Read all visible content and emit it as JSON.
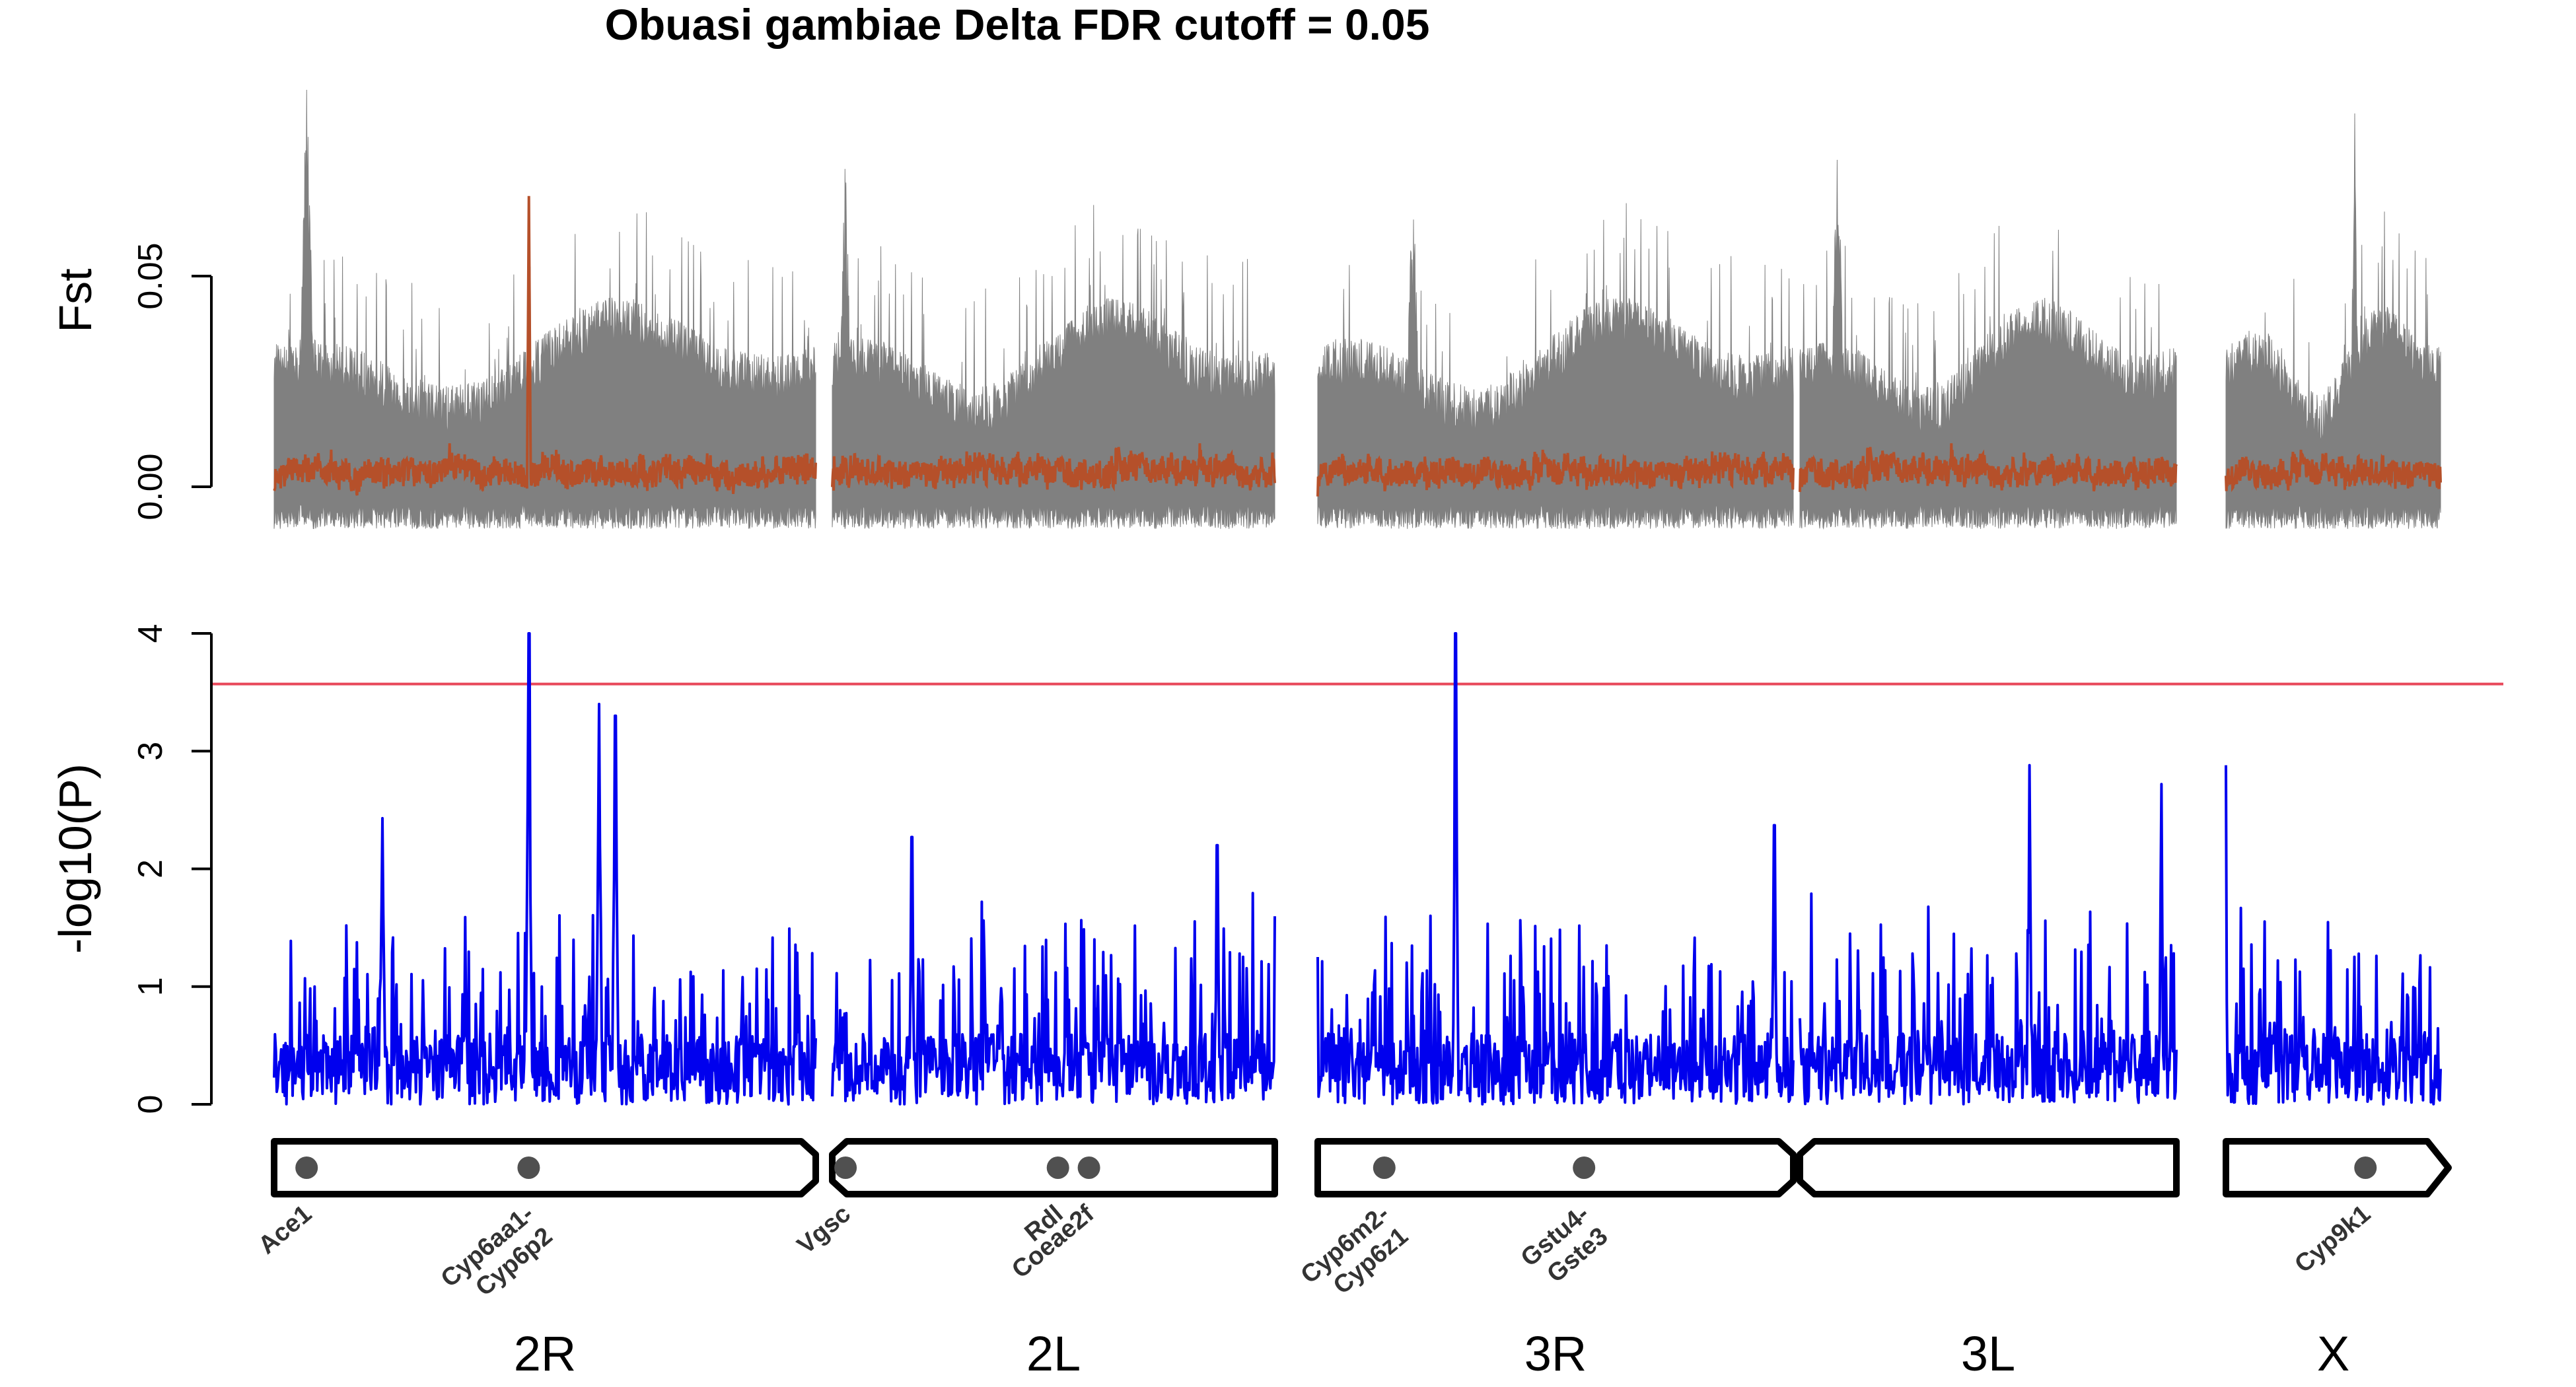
{
  "colors": {
    "fst_background": "#808080",
    "fst_smoothed": "#B5502A",
    "pvalue_line": "#0000EE",
    "fdr_cutoff": "#E8475A",
    "chromosome_outline": "#000000",
    "gene_marker": "#505050",
    "gene_label": "#333333"
  },
  "chart_data": [
    {
      "panel": "fst",
      "type": "line",
      "title": "Obuasi gambiae Delta FDR cutoff = 0.05",
      "ylabel": "Fst",
      "ylim": [
        -0.012,
        0.1
      ],
      "yticks": [
        {
          "value": 0.0,
          "label": "0.00"
        },
        {
          "value": 0.05,
          "label": "0.05"
        }
      ],
      "series": [
        {
          "key": "fst_windows",
          "color": "#808080"
        },
        {
          "key": "fst_smoothed",
          "color": "#B5502A"
        }
      ],
      "peaks": [
        {
          "chromosome": "2R",
          "x_fraction": 0.06,
          "fst": 0.097
        },
        {
          "chromosome": "2R",
          "x_fraction": 0.47,
          "fst": 0.069,
          "series": "fst_smoothed"
        },
        {
          "chromosome": "2L",
          "x_fraction": 0.03,
          "fst": 0.081
        },
        {
          "chromosome": "3R",
          "x_fraction": 0.2,
          "fst": 0.074
        },
        {
          "chromosome": "3L",
          "x_fraction": 0.1,
          "fst": 0.096
        },
        {
          "chromosome": "X",
          "x_fraction": 0.6,
          "fst": 0.097
        }
      ]
    },
    {
      "panel": "pvalue",
      "type": "line",
      "ylabel": "-log10(P)",
      "ylim": [
        0,
        4
      ],
      "yticks": [
        {
          "value": 0,
          "label": "0"
        },
        {
          "value": 1,
          "label": "1"
        },
        {
          "value": 2,
          "label": "2"
        },
        {
          "value": 3,
          "label": "3"
        },
        {
          "value": 4,
          "label": "4"
        }
      ],
      "fdr_threshold": 3.57,
      "peaks": [
        {
          "chromosome": "2R",
          "x_fraction": 0.47,
          "value": 4.0
        },
        {
          "chromosome": "2R",
          "x_fraction": 0.6,
          "value": 3.4
        },
        {
          "chromosome": "2R",
          "x_fraction": 0.63,
          "value": 3.3
        },
        {
          "chromosome": "2R",
          "x_fraction": 0.2,
          "value": 2.43
        },
        {
          "chromosome": "2L",
          "x_fraction": 0.18,
          "value": 2.27
        },
        {
          "chromosome": "2L",
          "x_fraction": 0.87,
          "value": 2.2
        },
        {
          "chromosome": "3R",
          "x_fraction": 0.29,
          "value": 4.0
        },
        {
          "chromosome": "3R",
          "x_fraction": 0.96,
          "value": 2.37
        },
        {
          "chromosome": "3L",
          "x_fraction": 0.61,
          "value": 2.88
        },
        {
          "chromosome": "3L",
          "x_fraction": 0.96,
          "value": 2.72
        },
        {
          "chromosome": "X",
          "x_fraction": 0.0,
          "value": 2.88
        }
      ]
    }
  ],
  "chromosomes": [
    {
      "name": "2R",
      "length_mb": 61.5,
      "shape": "right-notch",
      "genes": [
        {
          "label": "Ace1",
          "pos": 0.06
        },
        {
          "label": "Cyp6aa1-\nCyp6p2",
          "pos": 0.47
        }
      ]
    },
    {
      "name": "2L",
      "length_mb": 49.4,
      "shape": "left-notch",
      "genes": [
        {
          "label": "Vgsc",
          "pos": 0.03
        },
        {
          "label": "Rdl",
          "pos": 0.51
        },
        {
          "label": "Coeae2f",
          "pos": 0.58
        }
      ]
    },
    {
      "name": "3R",
      "length_mb": 53.2,
      "shape": "right-notch",
      "genes": [
        {
          "label": "Cyp6m2-\nCyp6z1",
          "pos": 0.14
        },
        {
          "label": "Gstu4-\nGste3",
          "pos": 0.56
        }
      ]
    },
    {
      "name": "3L",
      "length_mb": 41.9,
      "shape": "left-notch",
      "genes": []
    },
    {
      "name": "X",
      "length_mb": 24.4,
      "shape": "arrow",
      "genes": [
        {
          "label": "Cyp9k1",
          "pos": 0.65
        }
      ]
    }
  ]
}
